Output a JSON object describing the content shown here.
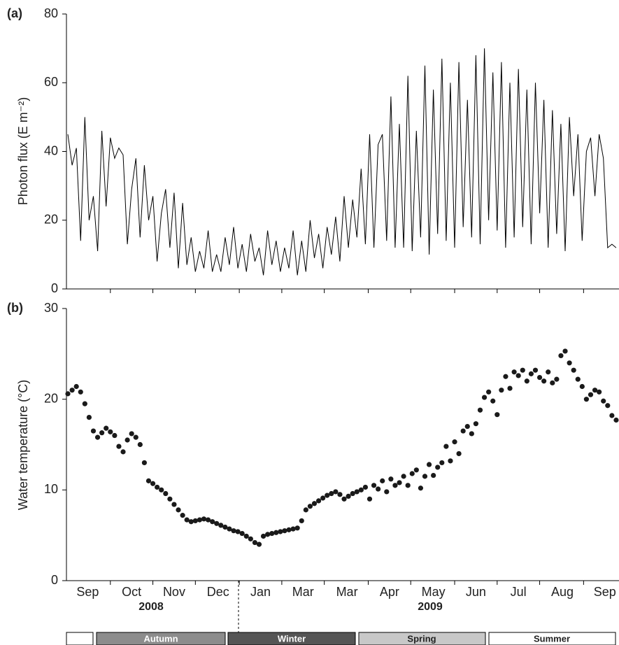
{
  "chart_data": [
    {
      "type": "line",
      "panel_label": "(a)",
      "y_label": "Photon flux (E m⁻²)",
      "color": "#000000",
      "xlim": [
        0,
        390
      ],
      "ylim": [
        0,
        80
      ],
      "yticks": [
        0,
        20,
        40,
        60,
        80
      ],
      "x_boundary_ticks": [
        31,
        61,
        91,
        122,
        152,
        182,
        213,
        243,
        274,
        304,
        334,
        365
      ],
      "x": [
        1,
        4,
        7,
        10,
        13,
        16,
        19,
        22,
        25,
        28,
        31,
        34,
        37,
        40,
        43,
        46,
        49,
        52,
        55,
        58,
        61,
        64,
        67,
        70,
        73,
        76,
        79,
        82,
        85,
        88,
        91,
        94,
        97,
        100,
        103,
        106,
        109,
        112,
        115,
        118,
        121,
        124,
        127,
        130,
        133,
        136,
        139,
        142,
        145,
        148,
        151,
        154,
        157,
        160,
        163,
        166,
        169,
        172,
        175,
        178,
        181,
        184,
        187,
        190,
        193,
        196,
        199,
        202,
        205,
        208,
        211,
        214,
        217,
        220,
        223,
        226,
        229,
        232,
        235,
        238,
        241,
        244,
        247,
        250,
        253,
        256,
        259,
        262,
        265,
        268,
        271,
        274,
        277,
        280,
        283,
        286,
        289,
        292,
        295,
        298,
        301,
        304,
        307,
        310,
        313,
        316,
        319,
        322,
        325,
        328,
        331,
        334,
        337,
        340,
        343,
        346,
        349,
        352,
        355,
        358,
        361,
        364,
        367,
        370,
        373,
        376,
        379,
        382,
        385,
        388
      ],
      "values": [
        45,
        36,
        41,
        14,
        50,
        20,
        27,
        11,
        46,
        24,
        44,
        38,
        41,
        39,
        13,
        29,
        38,
        15,
        36,
        20,
        27,
        8,
        22,
        29,
        12,
        28,
        6,
        25,
        7,
        15,
        5,
        11,
        6,
        17,
        5,
        10,
        5,
        15,
        7,
        18,
        6,
        13,
        5,
        16,
        8,
        12,
        4,
        17,
        7,
        14,
        5,
        12,
        6,
        17,
        4,
        14,
        5,
        20,
        9,
        16,
        6,
        18,
        10,
        21,
        8,
        27,
        12,
        26,
        15,
        35,
        13,
        45,
        12,
        42,
        45,
        14,
        56,
        12,
        48,
        12,
        62,
        11,
        46,
        15,
        65,
        10,
        58,
        16,
        67,
        14,
        60,
        12,
        66,
        18,
        55,
        15,
        68,
        13,
        70,
        20,
        63,
        17,
        66,
        12,
        60,
        15,
        64,
        18,
        58,
        13,
        60,
        22,
        55,
        12,
        52,
        16,
        48,
        11,
        50,
        27,
        45,
        14,
        40,
        44,
        27,
        45,
        38,
        12,
        13,
        12
      ]
    },
    {
      "type": "scatter",
      "panel_label": "(b)",
      "y_label": "Water temperature (°C)",
      "color": "#1a1a1a",
      "xlim": [
        0,
        390
      ],
      "ylim": [
        0,
        30
      ],
      "yticks": [
        0,
        10,
        20,
        30
      ],
      "x_boundary_ticks": [
        31,
        61,
        91,
        122,
        152,
        182,
        213,
        243,
        274,
        304,
        334,
        365
      ],
      "xticks": [
        {
          "value": 15,
          "label": "Sep"
        },
        {
          "value": 46,
          "label": "Oct"
        },
        {
          "value": 76,
          "label": "Nov"
        },
        {
          "value": 107,
          "label": "Dec"
        },
        {
          "value": 137,
          "label": "Jan"
        },
        {
          "value": 167,
          "label": "Mar"
        },
        {
          "value": 198,
          "label": "Mar"
        },
        {
          "value": 228,
          "label": "Apr"
        },
        {
          "value": 259,
          "label": "May"
        },
        {
          "value": 289,
          "label": "Jun"
        },
        {
          "value": 319,
          "label": "Jul"
        },
        {
          "value": 350,
          "label": "Aug"
        },
        {
          "value": 380,
          "label": "Sep"
        }
      ],
      "x": [
        1,
        4,
        7,
        10,
        13,
        16,
        19,
        22,
        25,
        28,
        31,
        34,
        37,
        40,
        43,
        46,
        49,
        52,
        55,
        58,
        61,
        64,
        67,
        70,
        73,
        76,
        79,
        82,
        85,
        88,
        91,
        94,
        97,
        100,
        103,
        106,
        109,
        112,
        115,
        118,
        121,
        124,
        127,
        130,
        133,
        136,
        139,
        142,
        145,
        148,
        151,
        154,
        157,
        160,
        163,
        166,
        169,
        172,
        175,
        178,
        181,
        184,
        187,
        190,
        193,
        196,
        199,
        202,
        205,
        208,
        211,
        214,
        217,
        220,
        223,
        226,
        229,
        232,
        235,
        238,
        241,
        244,
        247,
        250,
        253,
        256,
        259,
        262,
        265,
        268,
        271,
        274,
        277,
        280,
        283,
        286,
        289,
        292,
        295,
        298,
        301,
        304,
        307,
        310,
        313,
        316,
        319,
        322,
        325,
        328,
        331,
        334,
        337,
        340,
        343,
        346,
        349,
        352,
        355,
        358,
        361,
        364,
        367,
        370,
        373,
        376,
        379,
        382,
        385,
        388
      ],
      "values": [
        20.6,
        21.0,
        21.4,
        20.8,
        19.5,
        18.0,
        16.5,
        15.8,
        16.3,
        16.8,
        16.4,
        16.0,
        14.8,
        14.2,
        15.5,
        16.2,
        15.8,
        15.0,
        13.0,
        11.0,
        10.7,
        10.3,
        10.0,
        9.6,
        9.0,
        8.4,
        7.8,
        7.2,
        6.7,
        6.5,
        6.6,
        6.7,
        6.8,
        6.7,
        6.5,
        6.3,
        6.1,
        5.9,
        5.7,
        5.5,
        5.4,
        5.2,
        4.9,
        4.6,
        4.2,
        4.0,
        4.9,
        5.1,
        5.2,
        5.3,
        5.4,
        5.5,
        5.6,
        5.7,
        5.8,
        6.6,
        7.8,
        8.2,
        8.5,
        8.8,
        9.1,
        9.4,
        9.6,
        9.8,
        9.5,
        9.0,
        9.3,
        9.6,
        9.8,
        10.0,
        10.3,
        9.0,
        10.5,
        10.1,
        11.0,
        9.8,
        11.2,
        10.5,
        10.8,
        11.5,
        10.5,
        11.8,
        12.2,
        10.2,
        11.5,
        12.8,
        11.6,
        12.5,
        13.0,
        14.8,
        13.2,
        15.3,
        14.0,
        16.5,
        17.0,
        16.2,
        17.3,
        18.8,
        20.2,
        20.8,
        19.8,
        18.3,
        21.0,
        22.5,
        21.2,
        23.0,
        22.6,
        23.2,
        22.0,
        22.8,
        23.2,
        22.4,
        22.0,
        23.0,
        21.8,
        22.2,
        24.8,
        25.3,
        24.0,
        23.2,
        22.2,
        21.4,
        20.0,
        20.5,
        21.0,
        20.8,
        19.8,
        19.3,
        18.2,
        17.7
      ]
    }
  ],
  "years": [
    "2008",
    "2009"
  ],
  "seasons": [
    "Autumn",
    "Winter",
    "Spring",
    "Summer"
  ]
}
